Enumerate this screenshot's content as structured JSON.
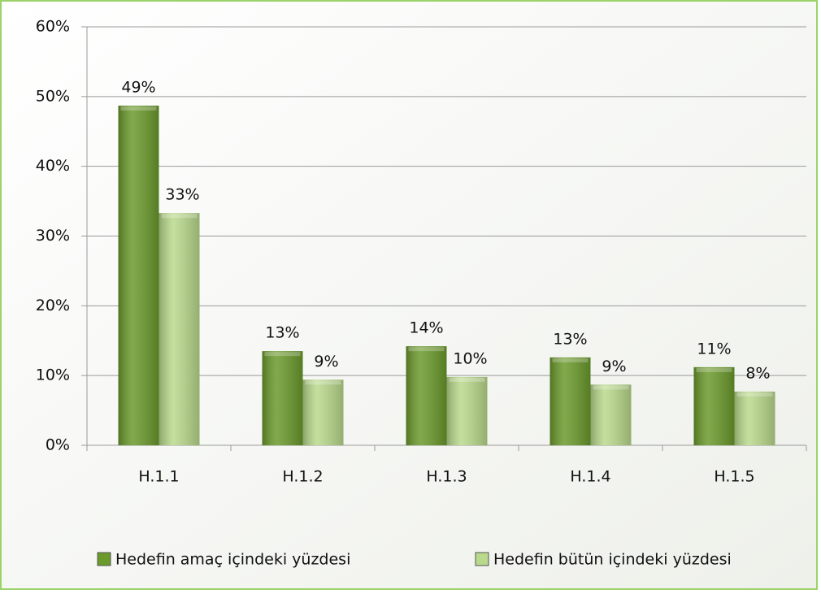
{
  "chart_data": {
    "type": "bar",
    "categories": [
      "H.1.1",
      "H.1.2",
      "H.1.3",
      "H.1.4",
      "H.1.5"
    ],
    "series": [
      {
        "name": "Hedefin amaç içindeki yüzdesi",
        "color": "#6b9a2c",
        "values": [
          48.7,
          13.5,
          14.2,
          12.6,
          11.2
        ],
        "value_labels": [
          "49%",
          "13%",
          "14%",
          "13%",
          "11%"
        ]
      },
      {
        "name": "Hedefin bütün içindeki yüzdesi",
        "color": "#b9d98c",
        "values": [
          33.3,
          9.4,
          9.8,
          8.7,
          7.7
        ],
        "value_labels": [
          "33%",
          "9%",
          "10%",
          "9%",
          "8%"
        ]
      }
    ],
    "ylim": [
      0,
      60
    ],
    "yticks": [
      {
        "value": 0,
        "label": "0%"
      },
      {
        "value": 10,
        "label": "10%"
      },
      {
        "value": 20,
        "label": "20%"
      },
      {
        "value": 30,
        "label": "30%"
      },
      {
        "value": 40,
        "label": "40%"
      },
      {
        "value": 50,
        "label": "50%"
      },
      {
        "value": 60,
        "label": "60%"
      }
    ],
    "grid": true,
    "legend": "bottom"
  }
}
